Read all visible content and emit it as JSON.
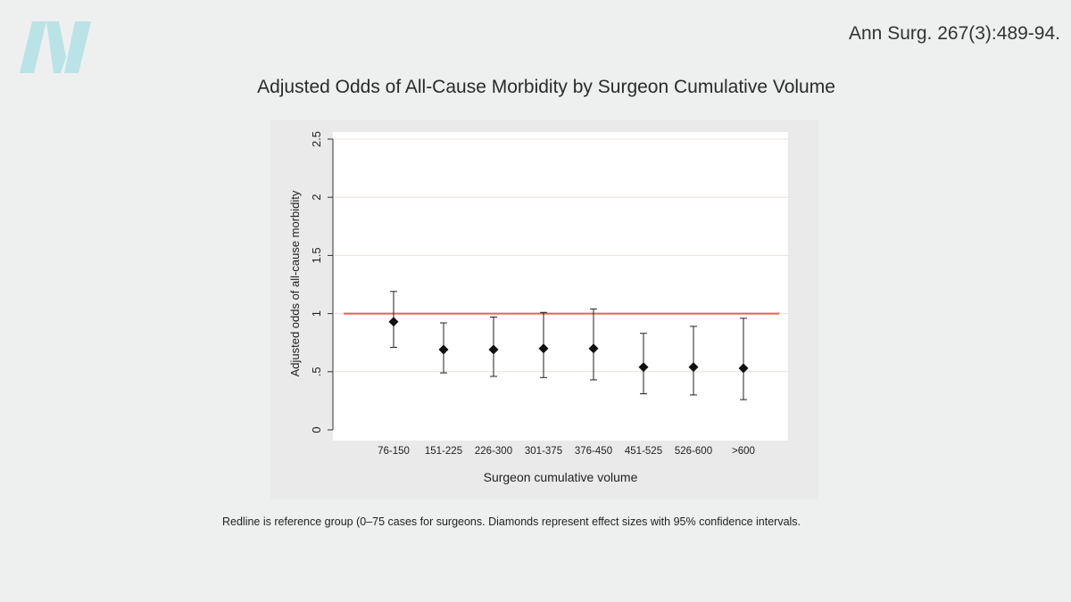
{
  "citation": "Ann Surg. 267(3):489-94.",
  "title": "Adjusted Odds of All-Cause Morbidity by Surgeon Cumulative Volume",
  "caption": "Redline is reference group (0–75 cases for surgeons. Diamonds represent effect sizes with 95% confidence intervals.",
  "logo": {
    "icon": "brand-n-logo",
    "color": "#b9e3e6"
  },
  "colors": {
    "reference_line": "#e8604f",
    "marker": "#111111",
    "plot_bg": "#ffffff",
    "panel_bg": "#eaeaea",
    "grid": "#e8e0dc"
  },
  "chart_data": {
    "type": "scatter",
    "xlabel": "Surgeon cumulative volume",
    "ylabel": "Adjusted odds of all-cause morbidity",
    "categories": [
      "76-150",
      "151-225",
      "226-300",
      "301-375",
      "376-450",
      "451-525",
      "526-600",
      ">600"
    ],
    "values": [
      0.93,
      0.69,
      0.69,
      0.7,
      0.7,
      0.54,
      0.54,
      0.53
    ],
    "ci_lower": [
      0.71,
      0.49,
      0.46,
      0.45,
      0.43,
      0.31,
      0.3,
      0.26
    ],
    "ci_upper": [
      1.19,
      0.92,
      0.97,
      1.01,
      1.04,
      0.83,
      0.89,
      0.96
    ],
    "ylim": [
      0,
      2.5
    ],
    "yticks": [
      0,
      0.5,
      1,
      1.5,
      2,
      2.5
    ],
    "ytick_labels": [
      "0",
      ".5",
      "1",
      "1.5",
      "2",
      "2.5"
    ],
    "reference_line": 1,
    "grid": true,
    "marker": "diamond"
  }
}
